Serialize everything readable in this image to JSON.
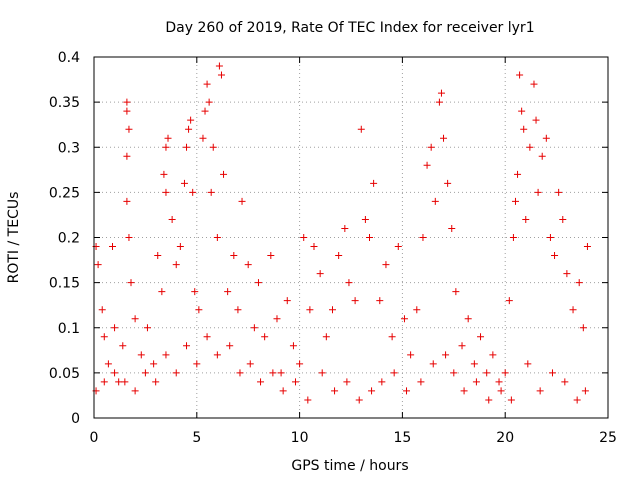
{
  "chart_data": {
    "type": "scatter",
    "title": "Day 260 of 2019, Rate Of TEC Index for receiver lyr1",
    "xlabel": "GPS time / hours",
    "ylabel": "ROTI / TECUs",
    "xlim": [
      0,
      25
    ],
    "ylim": [
      0,
      0.4
    ],
    "xticks": [
      0,
      5,
      10,
      15,
      20,
      25
    ],
    "xtick_labels": [
      "0",
      "5",
      "10",
      "15",
      "20",
      "25"
    ],
    "yticks": [
      0,
      0.05,
      0.1,
      0.15,
      0.2,
      0.25,
      0.3,
      0.35,
      0.4
    ],
    "ytick_labels": [
      "0",
      "0.05",
      "0.1",
      "0.15",
      "0.2",
      "0.25",
      "0.3",
      "0.35",
      "0.4"
    ],
    "grid": true,
    "marker": "+",
    "color": "#e60000",
    "series": [
      {
        "name": "ROTI",
        "points": [
          [
            0.1,
            0.19
          ],
          [
            0.2,
            0.17
          ],
          [
            0.4,
            0.12
          ],
          [
            0.5,
            0.09
          ],
          [
            0.7,
            0.06
          ],
          [
            0.9,
            0.19
          ],
          [
            1.0,
            0.1
          ],
          [
            1.2,
            0.04
          ],
          [
            1.4,
            0.08
          ],
          [
            1.6,
            0.29
          ],
          [
            1.6,
            0.34
          ],
          [
            1.6,
            0.35
          ],
          [
            1.6,
            0.24
          ],
          [
            1.7,
            0.32
          ],
          [
            1.7,
            0.2
          ],
          [
            1.8,
            0.15
          ],
          [
            2.0,
            0.11
          ],
          [
            2.3,
            0.07
          ],
          [
            2.6,
            0.1
          ],
          [
            2.9,
            0.06
          ],
          [
            3.1,
            0.18
          ],
          [
            3.3,
            0.14
          ],
          [
            3.4,
            0.27
          ],
          [
            3.5,
            0.3
          ],
          [
            3.5,
            0.25
          ],
          [
            3.6,
            0.31
          ],
          [
            3.8,
            0.22
          ],
          [
            4.0,
            0.17
          ],
          [
            4.2,
            0.19
          ],
          [
            4.4,
            0.26
          ],
          [
            4.5,
            0.3
          ],
          [
            4.6,
            0.32
          ],
          [
            4.7,
            0.33
          ],
          [
            4.8,
            0.25
          ],
          [
            4.9,
            0.14
          ],
          [
            5.1,
            0.12
          ],
          [
            5.3,
            0.31
          ],
          [
            5.4,
            0.34
          ],
          [
            5.5,
            0.37
          ],
          [
            5.6,
            0.35
          ],
          [
            5.7,
            0.25
          ],
          [
            5.8,
            0.3
          ],
          [
            6.0,
            0.2
          ],
          [
            6.1,
            0.39
          ],
          [
            6.2,
            0.38
          ],
          [
            6.3,
            0.27
          ],
          [
            6.5,
            0.14
          ],
          [
            6.8,
            0.18
          ],
          [
            7.0,
            0.12
          ],
          [
            7.2,
            0.24
          ],
          [
            7.5,
            0.17
          ],
          [
            7.8,
            0.1
          ],
          [
            8.0,
            0.15
          ],
          [
            8.3,
            0.09
          ],
          [
            8.6,
            0.18
          ],
          [
            8.9,
            0.11
          ],
          [
            9.1,
            0.05
          ],
          [
            9.4,
            0.13
          ],
          [
            9.7,
            0.08
          ],
          [
            10.0,
            0.06
          ],
          [
            10.2,
            0.2
          ],
          [
            10.5,
            0.12
          ],
          [
            10.7,
            0.19
          ],
          [
            11.0,
            0.16
          ],
          [
            11.3,
            0.09
          ],
          [
            11.6,
            0.12
          ],
          [
            11.9,
            0.18
          ],
          [
            12.2,
            0.21
          ],
          [
            12.4,
            0.15
          ],
          [
            12.7,
            0.13
          ],
          [
            13.0,
            0.32
          ],
          [
            13.2,
            0.22
          ],
          [
            13.4,
            0.2
          ],
          [
            13.6,
            0.26
          ],
          [
            13.9,
            0.13
          ],
          [
            14.2,
            0.17
          ],
          [
            14.5,
            0.09
          ],
          [
            14.8,
            0.19
          ],
          [
            15.1,
            0.11
          ],
          [
            15.4,
            0.07
          ],
          [
            15.7,
            0.12
          ],
          [
            16.0,
            0.2
          ],
          [
            16.2,
            0.28
          ],
          [
            16.4,
            0.3
          ],
          [
            16.6,
            0.24
          ],
          [
            16.8,
            0.35
          ],
          [
            16.9,
            0.36
          ],
          [
            17.0,
            0.31
          ],
          [
            17.2,
            0.26
          ],
          [
            17.4,
            0.21
          ],
          [
            17.6,
            0.14
          ],
          [
            17.9,
            0.08
          ],
          [
            18.2,
            0.11
          ],
          [
            18.5,
            0.06
          ],
          [
            18.8,
            0.09
          ],
          [
            19.1,
            0.05
          ],
          [
            19.4,
            0.07
          ],
          [
            19.7,
            0.04
          ],
          [
            20.0,
            0.05
          ],
          [
            20.2,
            0.13
          ],
          [
            20.4,
            0.2
          ],
          [
            20.5,
            0.24
          ],
          [
            20.6,
            0.27
          ],
          [
            20.7,
            0.38
          ],
          [
            20.8,
            0.34
          ],
          [
            20.9,
            0.32
          ],
          [
            21.0,
            0.22
          ],
          [
            21.2,
            0.3
          ],
          [
            21.4,
            0.37
          ],
          [
            21.5,
            0.33
          ],
          [
            21.6,
            0.25
          ],
          [
            21.8,
            0.29
          ],
          [
            22.0,
            0.31
          ],
          [
            22.2,
            0.2
          ],
          [
            22.4,
            0.18
          ],
          [
            22.6,
            0.25
          ],
          [
            22.8,
            0.22
          ],
          [
            23.0,
            0.16
          ],
          [
            23.3,
            0.12
          ],
          [
            23.6,
            0.15
          ],
          [
            23.8,
            0.1
          ],
          [
            24.0,
            0.19
          ],
          [
            23.9,
            0.03
          ],
          [
            23.5,
            0.02
          ],
          [
            22.9,
            0.04
          ],
          [
            22.3,
            0.05
          ],
          [
            21.7,
            0.03
          ],
          [
            21.1,
            0.06
          ],
          [
            20.3,
            0.02
          ],
          [
            19.8,
            0.03
          ],
          [
            19.2,
            0.02
          ],
          [
            18.6,
            0.04
          ],
          [
            18.0,
            0.03
          ],
          [
            17.5,
            0.05
          ],
          [
            17.1,
            0.07
          ],
          [
            16.5,
            0.06
          ],
          [
            15.9,
            0.04
          ],
          [
            15.2,
            0.03
          ],
          [
            14.6,
            0.05
          ],
          [
            14.0,
            0.04
          ],
          [
            13.5,
            0.03
          ],
          [
            12.9,
            0.02
          ],
          [
            12.3,
            0.04
          ],
          [
            11.7,
            0.03
          ],
          [
            11.1,
            0.05
          ],
          [
            10.4,
            0.02
          ],
          [
            9.8,
            0.04
          ],
          [
            9.2,
            0.03
          ],
          [
            8.7,
            0.05
          ],
          [
            8.1,
            0.04
          ],
          [
            7.6,
            0.06
          ],
          [
            7.1,
            0.05
          ],
          [
            6.6,
            0.08
          ],
          [
            6.0,
            0.07
          ],
          [
            5.5,
            0.09
          ],
          [
            5.0,
            0.06
          ],
          [
            4.5,
            0.08
          ],
          [
            4.0,
            0.05
          ],
          [
            3.5,
            0.07
          ],
          [
            3.0,
            0.04
          ],
          [
            2.5,
            0.05
          ],
          [
            2.0,
            0.03
          ],
          [
            1.5,
            0.04
          ],
          [
            1.0,
            0.05
          ],
          [
            0.5,
            0.04
          ],
          [
            0.1,
            0.03
          ]
        ]
      }
    ]
  }
}
